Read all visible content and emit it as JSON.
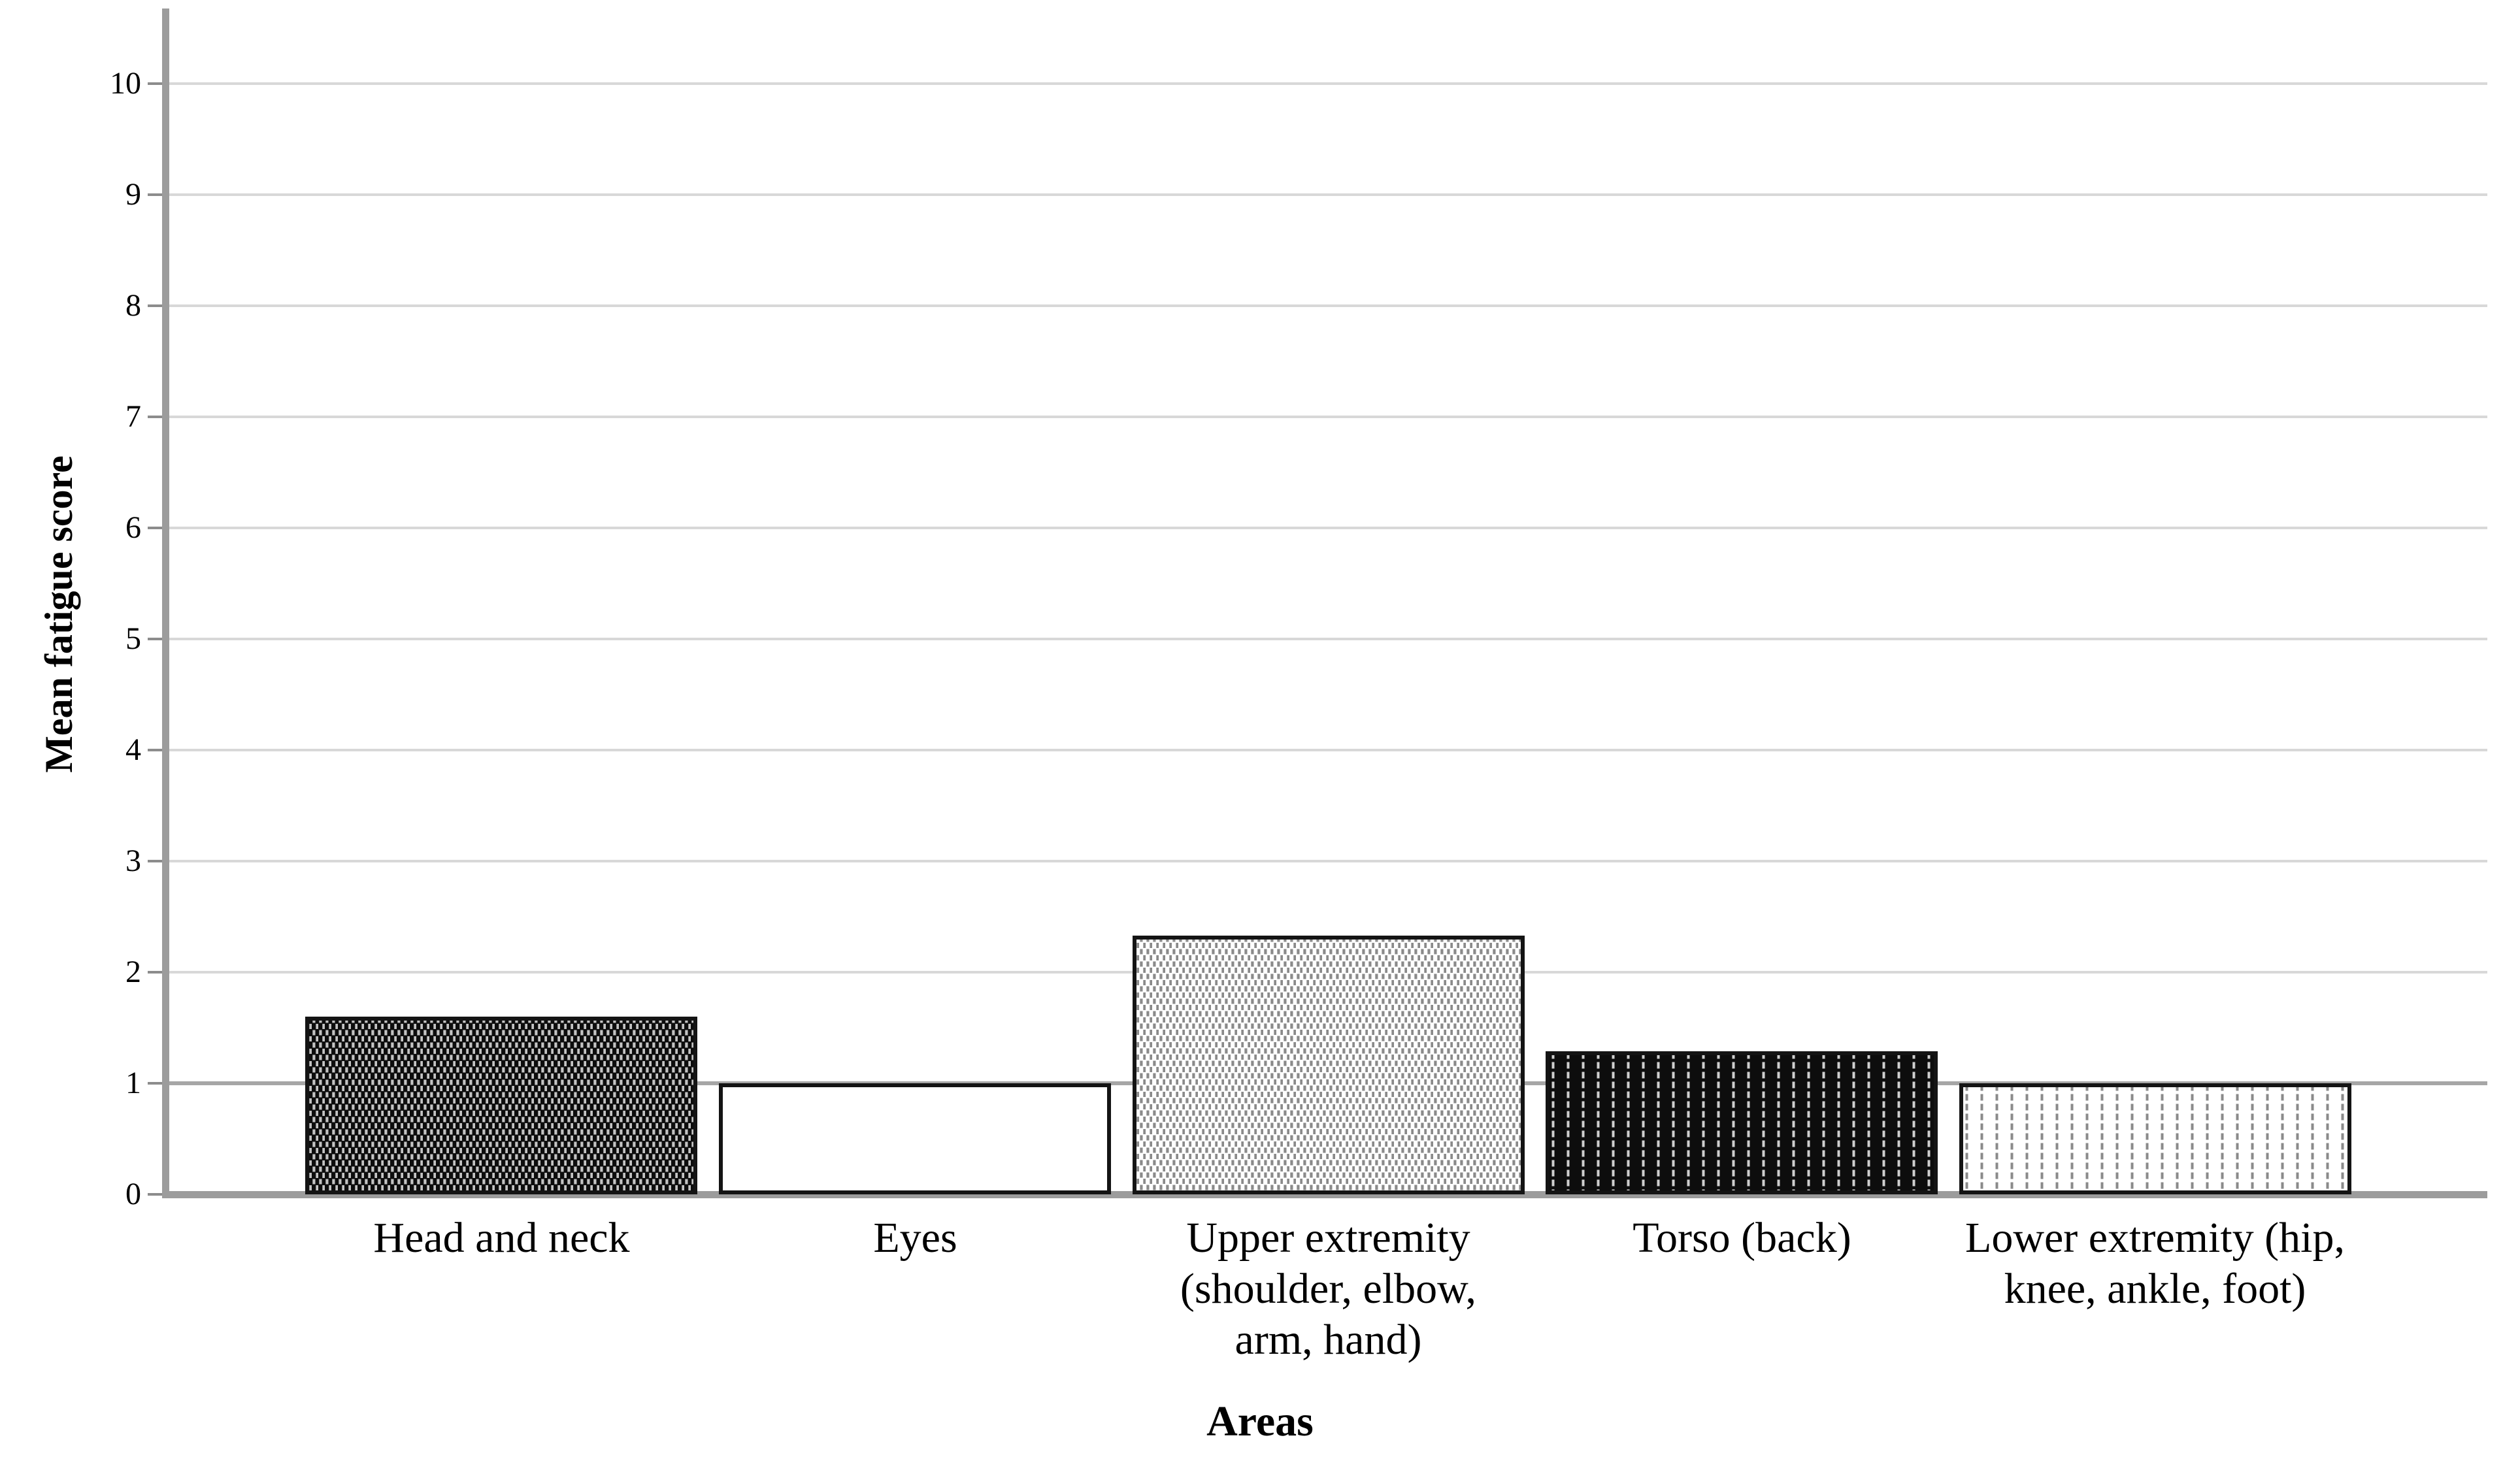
{
  "chart_data": {
    "type": "bar",
    "title": "",
    "xlabel": "Areas",
    "ylabel": "Mean fatigue score",
    "ylim": [
      0,
      10
    ],
    "ytick_step": 1,
    "yticks": [
      0,
      1,
      2,
      3,
      4,
      5,
      6,
      7,
      8,
      9,
      10
    ],
    "grid": true,
    "grid_emphasis_at": 1,
    "legend": false,
    "categories": [
      "Head and neck",
      "Eyes",
      "Upper extremity (shoulder, elbow, arm, hand)",
      "Torso (back)",
      "Lower extremity (hip, knee, ankle, foot)"
    ],
    "category_label_lines": [
      [
        "Head and neck"
      ],
      [
        "Eyes"
      ],
      [
        "Upper extremity",
        "(shoulder, elbow,",
        "arm, hand)"
      ],
      [
        "Torso (back)"
      ],
      [
        "Lower extremity (hip,",
        "knee, ankle, foot)"
      ]
    ],
    "values": [
      1.6,
      1.0,
      2.33,
      1.29,
      1.0
    ],
    "bar_patterns": [
      "checker-white-dashes-on-black",
      "solid-white",
      "checker-gray-dashes-on-white",
      "vertical-white-dashed-lines-on-black",
      "vertical-gray-dashed-lines-on-white"
    ],
    "colors": {
      "background": "#ffffff",
      "text": "#000000",
      "axis": "#9c9c9c",
      "grid": "#d8d8d8",
      "grid_emphasis": "#a6a6a6",
      "bar_border": "#141414",
      "bar_black": "#0d0d0d",
      "bar_white": "#ffffff",
      "dash_light": "#c4c4c4",
      "dash_gray": "#8a8a8a"
    }
  }
}
